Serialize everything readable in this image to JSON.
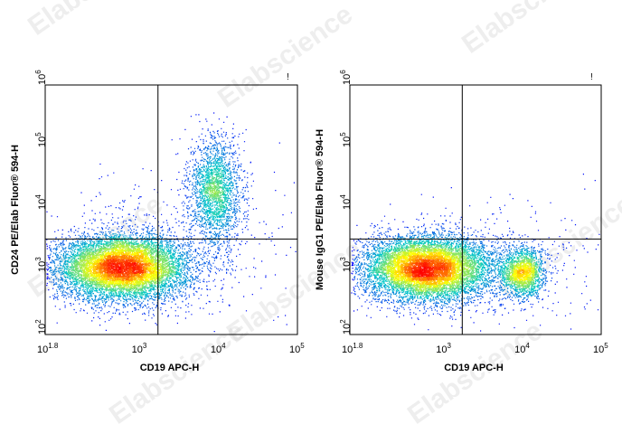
{
  "watermark": "Elabscience",
  "colors": {
    "low": "#0000ff",
    "mid": "#00c8c8",
    "high": "#ffff00",
    "peak": "#ff0000"
  },
  "chart_data": [
    {
      "type": "scatter",
      "subtype": "flow-cytometry-density-dot-plot",
      "xlabel": "CD19 APC-H",
      "ylabel": "CD24 PE/Elab Fluor® 594-H",
      "x_scale": "log",
      "y_scale": "log",
      "xlim": [
        63,
        100000
      ],
      "ylim": [
        100,
        1000000
      ],
      "x_ticks": [
        {
          "value": 63,
          "base": "10",
          "exp": "1.8"
        },
        {
          "value": 1000,
          "base": "10",
          "exp": "3"
        },
        {
          "value": 10000,
          "base": "10",
          "exp": "4"
        },
        {
          "value": 100000,
          "base": "10",
          "exp": "5"
        }
      ],
      "y_ticks": [
        {
          "value": 100,
          "base": "10",
          "exp": "2"
        },
        {
          "value": 1000,
          "base": "10",
          "exp": "3"
        },
        {
          "value": 10000,
          "base": "10",
          "exp": "4"
        },
        {
          "value": 100000,
          "base": "10",
          "exp": "5"
        },
        {
          "value": 1000000,
          "base": "10",
          "exp": "6"
        }
      ],
      "quadrant_gate": {
        "x": 1700,
        "y": 3400
      },
      "populations": [
        {
          "center": [
            600,
            1200
          ],
          "spread_log": [
            0.42,
            0.26
          ],
          "count": 9000
        },
        {
          "center": [
            9000,
            20000
          ],
          "spread_log": [
            0.16,
            0.42
          ],
          "count": 2200
        },
        {
          "center": [
            3000,
            3000
          ],
          "spread_log": [
            0.8,
            0.6
          ],
          "count": 500
        }
      ]
    },
    {
      "type": "scatter",
      "subtype": "flow-cytometry-density-dot-plot",
      "xlabel": "CD19 APC-H",
      "ylabel": "Mouse IgG1 PE/Elab Fluor® 594-H",
      "x_scale": "log",
      "y_scale": "log",
      "xlim": [
        63,
        100000
      ],
      "ylim": [
        100,
        1000000
      ],
      "x_ticks": [
        {
          "value": 63,
          "base": "10",
          "exp": "1.8"
        },
        {
          "value": 1000,
          "base": "10",
          "exp": "3"
        },
        {
          "value": 10000,
          "base": "10",
          "exp": "4"
        },
        {
          "value": 100000,
          "base": "10",
          "exp": "5"
        }
      ],
      "y_ticks": [
        {
          "value": 100,
          "base": "10",
          "exp": "2"
        },
        {
          "value": 1000,
          "base": "10",
          "exp": "3"
        },
        {
          "value": 10000,
          "base": "10",
          "exp": "4"
        },
        {
          "value": 100000,
          "base": "10",
          "exp": "5"
        },
        {
          "value": 1000000,
          "base": "10",
          "exp": "6"
        }
      ],
      "quadrant_gate": {
        "x": 1700,
        "y": 3400
      },
      "populations": [
        {
          "center": [
            600,
            1150
          ],
          "spread_log": [
            0.42,
            0.26
          ],
          "count": 9000
        },
        {
          "center": [
            10000,
            1000
          ],
          "spread_log": [
            0.14,
            0.2
          ],
          "count": 1800
        },
        {
          "center": [
            3000,
            1200
          ],
          "spread_log": [
            0.8,
            0.5
          ],
          "count": 400
        }
      ]
    }
  ]
}
